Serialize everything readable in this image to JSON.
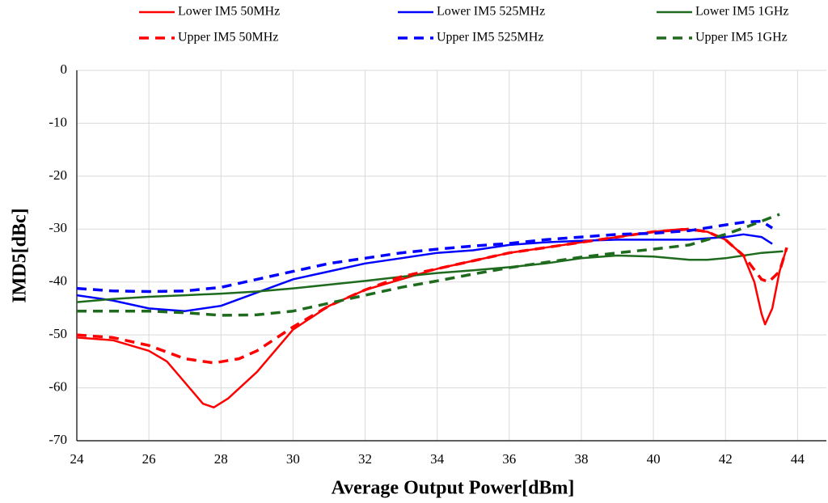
{
  "chart_data": {
    "type": "line",
    "xlabel": "Average Output Power[dBm]",
    "ylabel": "IMD5[dBc]",
    "xlim": [
      24,
      44.8
    ],
    "xticks": [
      24,
      26,
      28,
      30,
      32,
      34,
      36,
      38,
      40,
      42,
      44
    ],
    "ylim": [
      -70,
      0
    ],
    "yticks": [
      0,
      -10,
      -20,
      -30,
      -40,
      -50,
      -60,
      -70
    ],
    "grid": true,
    "series": [
      {
        "name": "Lower IM5 50MHz",
        "color": "#ff0000",
        "dashed": false,
        "x": [
          24,
          25,
          26,
          26.5,
          27,
          27.5,
          27.8,
          28.2,
          29,
          30,
          31,
          32,
          33,
          34,
          35,
          36,
          37,
          38,
          39,
          40,
          40.8,
          41.5,
          42,
          42.5,
          42.8,
          43,
          43.1,
          43.3,
          43.5,
          43.7
        ],
        "values": [
          -50.5,
          -51,
          -53,
          -55,
          -59,
          -63,
          -63.7,
          -62,
          -57,
          -49,
          -44.5,
          -41.5,
          -39.5,
          -37.5,
          -36,
          -34.5,
          -33.5,
          -32.5,
          -31.5,
          -30.5,
          -30,
          -30.5,
          -32,
          -35,
          -40,
          -46,
          -48,
          -45,
          -38,
          -33.5
        ]
      },
      {
        "name": "Lower IM5 525MHz",
        "color": "#0000ff",
        "dashed": false,
        "x": [
          24,
          25,
          26,
          27,
          28,
          29,
          30,
          31,
          32,
          33,
          34,
          35,
          36,
          37,
          38,
          39,
          40,
          41,
          42,
          42.5,
          43,
          43.3
        ],
        "values": [
          -42.5,
          -43.5,
          -45,
          -45.5,
          -44.5,
          -42,
          -39.5,
          -38,
          -36.5,
          -35.5,
          -34.5,
          -34,
          -33,
          -32.5,
          -32.2,
          -32,
          -32,
          -32,
          -31.5,
          -31,
          -31.5,
          -32.8
        ]
      },
      {
        "name": "Lower IM5 1GHz",
        "color": "#1e6b1e",
        "dashed": false,
        "x": [
          24,
          25,
          26,
          27,
          28,
          29,
          30,
          31,
          32,
          33,
          34,
          35,
          36,
          37,
          38,
          39,
          40,
          41,
          41.5,
          42,
          43,
          43.6
        ],
        "values": [
          -43.8,
          -43.2,
          -42.8,
          -42.5,
          -42.2,
          -41.8,
          -41.2,
          -40.5,
          -39.8,
          -39,
          -38.3,
          -37.8,
          -37.2,
          -36.5,
          -35.5,
          -35,
          -35.2,
          -35.8,
          -35.8,
          -35.5,
          -34.5,
          -34.2
        ]
      },
      {
        "name": "Upper IM5 50MHz",
        "color": "#ff0000",
        "dashed": true,
        "x": [
          24,
          25,
          26,
          27,
          27.8,
          28.5,
          29,
          30,
          31,
          32,
          33,
          34,
          35,
          36,
          37,
          38,
          39,
          40,
          41,
          41.5,
          42,
          42.5,
          43,
          43.2,
          43.5,
          43.7
        ],
        "values": [
          -50,
          -50.5,
          -52,
          -54.5,
          -55.3,
          -54.5,
          -53,
          -48.5,
          -44.5,
          -41.5,
          -39,
          -37.5,
          -36,
          -34.5,
          -33.5,
          -32.5,
          -31.5,
          -30.5,
          -30,
          -30.5,
          -32,
          -35,
          -39.5,
          -40,
          -38,
          -33.5
        ]
      },
      {
        "name": "Upper IM5 525MHz",
        "color": "#0000ff",
        "dashed": true,
        "x": [
          24,
          25,
          26,
          27,
          28,
          29,
          30,
          31,
          32,
          33,
          34,
          35,
          36,
          37,
          38,
          39,
          40,
          41,
          42,
          42.5,
          43,
          43.3
        ],
        "values": [
          -41.2,
          -41.7,
          -41.8,
          -41.7,
          -41,
          -39.5,
          -38,
          -36.5,
          -35.5,
          -34.5,
          -33.8,
          -33.2,
          -32.7,
          -32,
          -31.5,
          -31,
          -30.8,
          -30.3,
          -29.2,
          -28.7,
          -28.5,
          -29.8
        ]
      },
      {
        "name": "Upper IM5 1GHz",
        "color": "#1e6b1e",
        "dashed": true,
        "x": [
          24,
          25,
          26,
          27,
          28,
          29,
          30,
          31,
          32,
          33,
          34,
          35,
          36,
          37,
          38,
          39,
          40,
          41,
          42,
          42.5,
          43,
          43.5
        ],
        "values": [
          -45.5,
          -45.5,
          -45.5,
          -45.8,
          -46.3,
          -46.2,
          -45.5,
          -44,
          -42.5,
          -41,
          -39.8,
          -38.5,
          -37.3,
          -36.3,
          -35.3,
          -34.5,
          -33.8,
          -33,
          -31,
          -29.8,
          -28.5,
          -27.2
        ]
      }
    ]
  }
}
